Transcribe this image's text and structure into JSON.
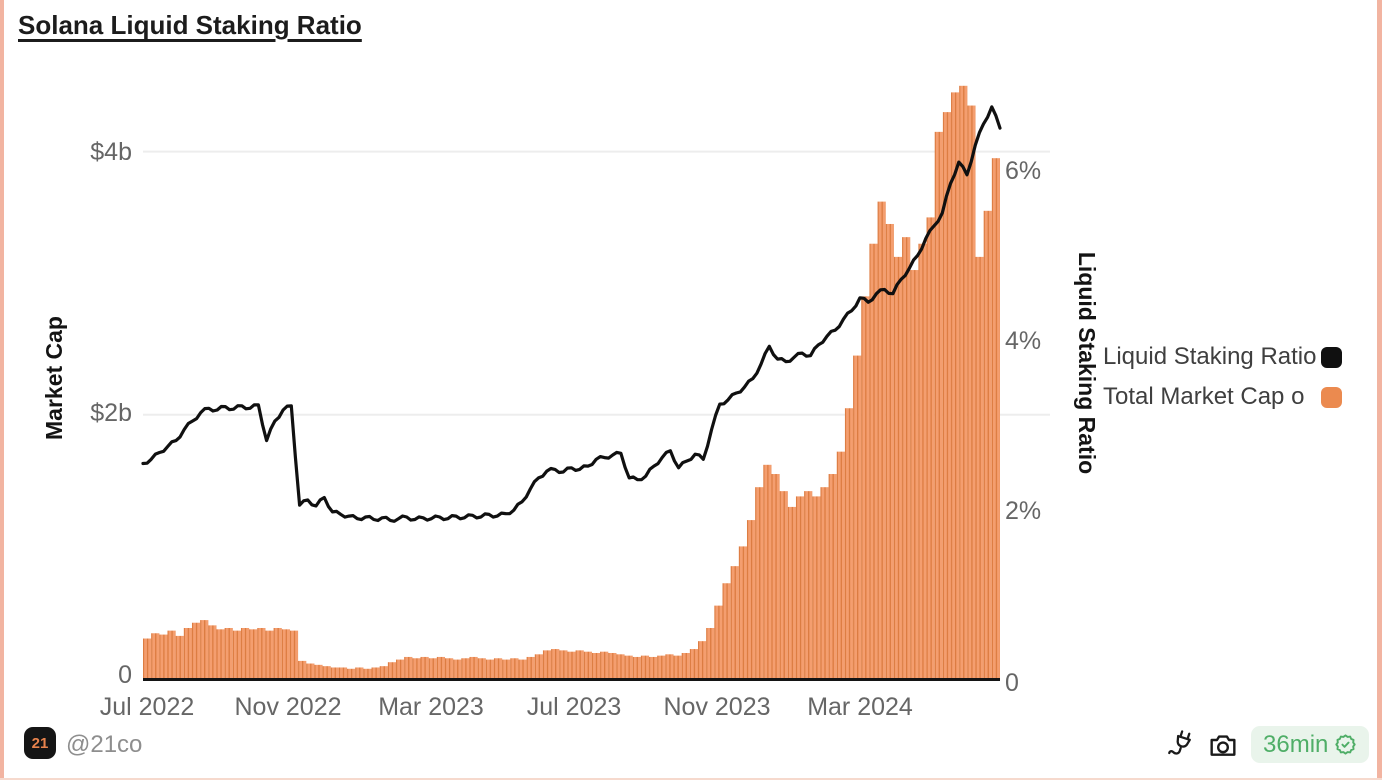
{
  "header": {
    "title": "Solana Liquid Staking Ratio"
  },
  "axes": {
    "left": {
      "title": "Market Cap",
      "ticks": [
        "$4b",
        "$2b",
        "0"
      ]
    },
    "right": {
      "title": "Liquid Staking Ratio",
      "ticks": [
        "6%",
        "4%",
        "2%",
        "0"
      ]
    },
    "x": {
      "ticks": [
        "Jul 2022",
        "Nov 2022",
        "Mar 2023",
        "Jul 2023",
        "Nov 2023",
        "Mar 2024"
      ]
    }
  },
  "legend": {
    "items": [
      {
        "label": "Liquid Staking Ratio",
        "color": "#101010"
      },
      {
        "label": "Total Market Cap o",
        "color": "#EB8A4F"
      }
    ]
  },
  "footer": {
    "logo_text": "21",
    "handle": "@21co",
    "badge": {
      "duration": "36min"
    }
  },
  "colors": {
    "bar_fill": "#F49E6F",
    "bar_stripe": "#DC7C41",
    "line": "#101010",
    "gridline": "#EDEDED",
    "axis_line": "#141414",
    "card_border": "#F2B4A1",
    "badge_green": "#4FAE67",
    "badge_bg": "#E9F4EB"
  },
  "chart_data": {
    "type": "combo",
    "title": "Solana Liquid Staking Ratio",
    "x_range": [
      "Jul 2022",
      "Jul 2024"
    ],
    "x_tick_labels": [
      "Jul 2022",
      "Nov 2022",
      "Mar 2023",
      "Jul 2023",
      "Nov 2023",
      "Mar 2024"
    ],
    "left_axis": {
      "label": "Market Cap",
      "unit": "$ billions",
      "ylim": [
        0,
        4.56
      ],
      "grid_values": [
        2,
        4
      ]
    },
    "right_axis": {
      "label": "Liquid Staking Ratio",
      "unit": "%",
      "ylim": [
        0,
        7.05
      ],
      "grid": false
    },
    "legend_position": "right",
    "series": [
      {
        "name": "Liquid Staking Ratio",
        "type": "line",
        "axis": "right",
        "color": "#101010",
        "values": [
          2.55,
          2.6,
          2.68,
          2.75,
          2.82,
          2.95,
          3.05,
          3.15,
          3.2,
          3.18,
          3.22,
          3.19,
          3.23,
          3.2,
          3.24,
          2.82,
          3.05,
          3.18,
          3.23,
          2.06,
          2.12,
          2.05,
          2.15,
          1.98,
          1.95,
          1.93,
          1.9,
          1.92,
          1.89,
          1.91,
          1.88,
          1.9,
          1.92,
          1.89,
          1.91,
          1.9,
          1.92,
          1.9,
          1.93,
          1.91,
          1.94,
          1.92,
          1.95,
          1.93,
          1.96,
          2.0,
          2.1,
          2.25,
          2.38,
          2.46,
          2.48,
          2.45,
          2.5,
          2.48,
          2.52,
          2.6,
          2.62,
          2.65,
          2.67,
          2.38,
          2.36,
          2.4,
          2.52,
          2.62,
          2.7,
          2.5,
          2.58,
          2.66,
          2.6,
          2.95,
          3.25,
          3.3,
          3.38,
          3.45,
          3.55,
          3.72,
          3.93,
          3.78,
          3.75,
          3.8,
          3.85,
          3.82,
          3.95,
          4.05,
          4.12,
          4.25,
          4.35,
          4.5,
          4.45,
          4.55,
          4.6,
          4.55,
          4.72,
          4.85,
          5.0,
          5.2,
          5.35,
          5.5,
          5.85,
          6.1,
          5.95,
          6.3,
          6.55,
          6.75,
          6.5
        ]
      },
      {
        "name": "Total Market Cap o",
        "type": "bar",
        "axis": "left",
        "color": "#F49E6F",
        "stripe_color": "#DC7C41",
        "values": [
          0.3,
          0.34,
          0.33,
          0.36,
          0.32,
          0.38,
          0.42,
          0.44,
          0.4,
          0.37,
          0.38,
          0.36,
          0.38,
          0.37,
          0.38,
          0.36,
          0.38,
          0.37,
          0.36,
          0.13,
          0.11,
          0.1,
          0.09,
          0.08,
          0.08,
          0.07,
          0.08,
          0.07,
          0.08,
          0.09,
          0.12,
          0.14,
          0.16,
          0.15,
          0.16,
          0.15,
          0.16,
          0.15,
          0.14,
          0.15,
          0.16,
          0.15,
          0.14,
          0.15,
          0.14,
          0.15,
          0.14,
          0.16,
          0.18,
          0.21,
          0.22,
          0.21,
          0.2,
          0.21,
          0.2,
          0.19,
          0.2,
          0.19,
          0.18,
          0.17,
          0.16,
          0.17,
          0.16,
          0.17,
          0.18,
          0.17,
          0.19,
          0.22,
          0.28,
          0.38,
          0.55,
          0.72,
          0.85,
          1.0,
          1.2,
          1.45,
          1.62,
          1.55,
          1.42,
          1.3,
          1.38,
          1.42,
          1.38,
          1.45,
          1.55,
          1.72,
          2.05,
          2.45,
          2.9,
          3.3,
          3.62,
          3.45,
          3.2,
          3.35,
          3.1,
          3.3,
          3.5,
          4.15,
          4.3,
          4.45,
          4.5,
          4.35,
          3.2,
          3.55,
          3.95
        ]
      }
    ]
  }
}
